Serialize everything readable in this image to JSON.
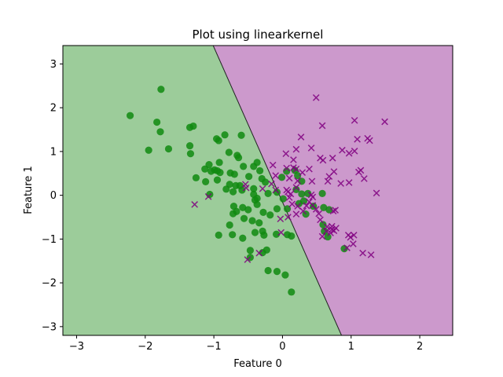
{
  "chart_data": {
    "type": "scatter",
    "title": "Plot using linearkernel",
    "xlabel": "Feature 0",
    "ylabel": "Feature 1",
    "xlim": [
      -3.2,
      2.48
    ],
    "ylim": [
      -3.2,
      3.42
    ],
    "xticks": [
      -3,
      -2,
      -1,
      0,
      1,
      2
    ],
    "yticks": [
      -3,
      -2,
      -1,
      0,
      1,
      2,
      3
    ],
    "grid": false,
    "legend": "none",
    "decision_boundary": {
      "points": [
        [
          -1.01,
          3.42
        ],
        [
          0.86,
          -3.2
        ]
      ]
    },
    "regions": {
      "left_color": "#9ccc9a",
      "right_color": "#cc99cc"
    },
    "colors": {
      "class0": "#108a10",
      "class1": "#800080",
      "boundary": "#222222"
    },
    "series": [
      {
        "marker": "circle",
        "points": [
          [
            -2.22,
            1.82
          ],
          [
            -1.77,
            2.42
          ],
          [
            -1.83,
            1.67
          ],
          [
            -1.78,
            1.45
          ],
          [
            -1.95,
            1.03
          ],
          [
            -1.66,
            1.06
          ],
          [
            -1.35,
            1.55
          ],
          [
            -1.3,
            1.58
          ],
          [
            -1.35,
            1.13
          ],
          [
            -1.34,
            0.95
          ],
          [
            -0.96,
            1.29
          ],
          [
            -0.93,
            1.25
          ],
          [
            -0.84,
            1.38
          ],
          [
            -0.6,
            1.37
          ],
          [
            -0.78,
            0.98
          ],
          [
            -0.66,
            0.91
          ],
          [
            -0.92,
            0.75
          ],
          [
            -1.07,
            0.7
          ],
          [
            -0.99,
            0.58
          ],
          [
            -1.13,
            0.6
          ],
          [
            -1.04,
            0.55
          ],
          [
            -0.95,
            0.56
          ],
          [
            -0.91,
            0.52
          ],
          [
            -0.76,
            0.51
          ],
          [
            -0.7,
            0.48
          ],
          [
            -0.57,
            0.66
          ],
          [
            -0.42,
            0.66
          ],
          [
            -0.37,
            0.75
          ],
          [
            -0.33,
            0.56
          ],
          [
            -0.49,
            0.43
          ],
          [
            -0.3,
            0.38
          ],
          [
            -0.25,
            0.3
          ],
          [
            -0.01,
            0.41
          ],
          [
            0.06,
            0.55
          ],
          [
            0.18,
            0.57
          ],
          [
            0.22,
            0.45
          ],
          [
            0.28,
            0.32
          ],
          [
            -0.64,
            0.86
          ],
          [
            -1.26,
            0.4
          ],
          [
            -1.12,
            0.31
          ],
          [
            -1.06,
            0.02
          ],
          [
            -0.82,
            0.14
          ],
          [
            -0.77,
            0.25
          ],
          [
            -0.68,
            0.22
          ],
          [
            -0.72,
            0.08
          ],
          [
            -0.59,
            0.12
          ],
          [
            -0.62,
            0.22
          ],
          [
            -0.42,
            0.15
          ],
          [
            -0.42,
            0.02
          ],
          [
            -0.37,
            -0.07
          ],
          [
            -0.21,
            0.04
          ],
          [
            -0.08,
            0.07
          ],
          [
            0.01,
            -0.08
          ],
          [
            0.2,
            0.13
          ],
          [
            0.28,
            0.03
          ],
          [
            0.37,
            0.04
          ],
          [
            0.58,
            0.04
          ],
          [
            -0.95,
            0.35
          ],
          [
            -0.71,
            -0.25
          ],
          [
            -0.67,
            -0.37
          ],
          [
            -0.72,
            -0.42
          ],
          [
            -0.58,
            -0.28
          ],
          [
            -0.4,
            -0.11
          ],
          [
            -0.5,
            -0.33
          ],
          [
            -0.37,
            -0.21
          ],
          [
            -0.28,
            -0.39
          ],
          [
            -0.18,
            -0.45
          ],
          [
            -0.08,
            -0.31
          ],
          [
            0.07,
            -0.31
          ],
          [
            0.24,
            -0.19
          ],
          [
            0.34,
            -0.43
          ],
          [
            -0.56,
            -0.53
          ],
          [
            -0.44,
            -0.58
          ],
          [
            -0.34,
            -0.63
          ],
          [
            -0.77,
            -0.68
          ],
          [
            -0.93,
            -0.91
          ],
          [
            -0.73,
            -0.9
          ],
          [
            -0.58,
            -0.98
          ],
          [
            -0.4,
            -0.85
          ],
          [
            -0.29,
            -0.82
          ],
          [
            -0.27,
            -0.91
          ],
          [
            -0.09,
            -0.89
          ],
          [
            0.07,
            -0.9
          ],
          [
            0.13,
            -0.93
          ],
          [
            -0.47,
            -1.26
          ],
          [
            -0.29,
            -1.31
          ],
          [
            -0.23,
            -1.25
          ],
          [
            -0.47,
            -1.42
          ],
          [
            -0.21,
            -1.72
          ],
          [
            -0.08,
            -1.74
          ],
          [
            0.04,
            -1.82
          ],
          [
            0.13,
            -2.21
          ],
          [
            0.59,
            -0.67
          ],
          [
            0.61,
            -0.82
          ],
          [
            0.66,
            -0.95
          ],
          [
            0.9,
            -1.22
          ],
          [
            0.31,
            -0.13
          ],
          [
            0.45,
            -0.25
          ],
          [
            0.6,
            -0.28
          ],
          [
            0.68,
            -0.33
          ]
        ]
      },
      {
        "marker": "x",
        "points": [
          [
            0.49,
            2.23
          ],
          [
            0.58,
            1.59
          ],
          [
            1.05,
            1.71
          ],
          [
            1.49,
            1.68
          ],
          [
            1.09,
            1.28
          ],
          [
            1.24,
            1.3
          ],
          [
            1.27,
            1.25
          ],
          [
            0.27,
            1.33
          ],
          [
            0.42,
            1.08
          ],
          [
            0.2,
            1.05
          ],
          [
            0.05,
            0.95
          ],
          [
            0.16,
            0.81
          ],
          [
            0.55,
            0.85
          ],
          [
            0.59,
            0.8
          ],
          [
            0.73,
            0.85
          ],
          [
            0.87,
            1.03
          ],
          [
            0.97,
            0.96
          ],
          [
            1.05,
            1.01
          ],
          [
            -0.14,
            0.69
          ],
          [
            0.06,
            0.62
          ],
          [
            0.16,
            0.63
          ],
          [
            0.29,
            0.52
          ],
          [
            0.39,
            0.6
          ],
          [
            0.75,
            0.54
          ],
          [
            1.11,
            0.53
          ],
          [
            1.14,
            0.57
          ],
          [
            1.19,
            0.38
          ],
          [
            0.68,
            0.43
          ],
          [
            0.66,
            0.32
          ],
          [
            0.85,
            0.27
          ],
          [
            0.97,
            0.29
          ],
          [
            -0.1,
            0.45
          ],
          [
            0.1,
            0.39
          ],
          [
            0.22,
            0.33
          ],
          [
            0.43,
            0.32
          ],
          [
            -0.16,
            0.26
          ],
          [
            0.06,
            0.12
          ],
          [
            0.08,
            0.08
          ],
          [
            0.12,
            0.03
          ],
          [
            0.2,
            0.18
          ],
          [
            0.42,
            0.01
          ],
          [
            -0.1,
            0.12
          ],
          [
            -0.29,
            0.15
          ],
          [
            -0.54,
            0.25
          ],
          [
            -0.53,
            0.17
          ],
          [
            1.37,
            0.05
          ],
          [
            0.1,
            -0.05
          ],
          [
            0.14,
            -0.2
          ],
          [
            0.22,
            -0.25
          ],
          [
            0.3,
            -0.36
          ],
          [
            0.35,
            -0.24
          ],
          [
            0.39,
            -0.15
          ],
          [
            0.44,
            -0.23
          ],
          [
            0.49,
            -0.32
          ],
          [
            0.53,
            -0.42
          ],
          [
            0.55,
            -0.56
          ],
          [
            0.2,
            -0.43
          ],
          [
            0.08,
            -0.5
          ],
          [
            -0.03,
            -0.54
          ],
          [
            0.74,
            -0.36
          ],
          [
            0.77,
            -0.34
          ],
          [
            0.65,
            -0.72
          ],
          [
            0.72,
            -0.71
          ],
          [
            0.72,
            -0.78
          ],
          [
            0.64,
            -0.82
          ],
          [
            0.58,
            -0.94
          ],
          [
            0.7,
            -0.86
          ],
          [
            0.75,
            -0.81
          ],
          [
            0.78,
            -0.75
          ],
          [
            0.96,
            -0.91
          ],
          [
            1.04,
            -0.91
          ],
          [
            0.99,
            -0.96
          ],
          [
            0.94,
            -1.2
          ],
          [
            1.03,
            -1.11
          ],
          [
            1.17,
            -1.32
          ],
          [
            1.29,
            -1.36
          ],
          [
            -0.02,
            -0.85
          ],
          [
            -0.34,
            -1.32
          ],
          [
            -0.51,
            -1.47
          ],
          [
            -1.28,
            -0.21
          ],
          [
            -1.08,
            -0.03
          ],
          [
            0.44,
            -0.04
          ],
          [
            0.2,
            0.6
          ]
        ]
      }
    ]
  }
}
